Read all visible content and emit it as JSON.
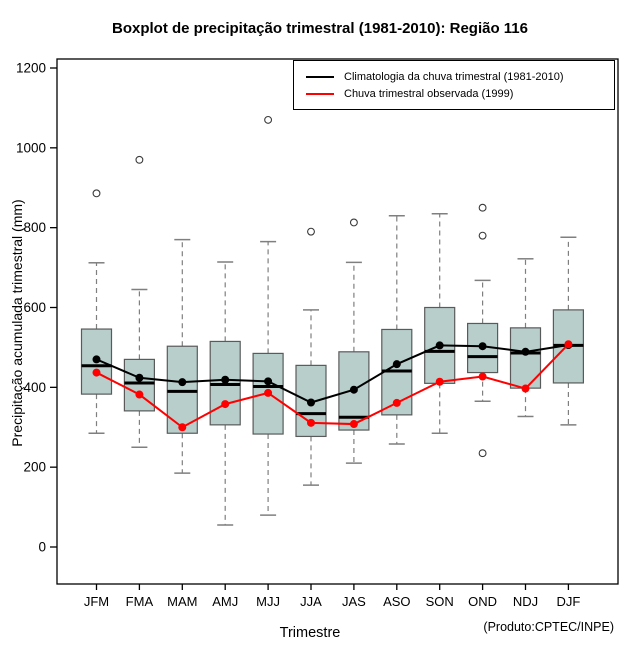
{
  "title": "Boxplot de precipitação trimestral (1981-2010): Região 116",
  "source_note": "(Produto:CPTEC/INPE)",
  "chart_data": {
    "type": "boxplot",
    "title": "Boxplot de precipitação trimestral (1981-2010): Região 116",
    "xlabel": "Trimestre",
    "ylabel": "Precipitação acumulada trimestral (mm)",
    "ylim": [
      0,
      1200
    ],
    "yticks": [
      0,
      200,
      400,
      600,
      800,
      1000,
      1200
    ],
    "grid": "off",
    "legend_position": "top-right-inside",
    "categories": [
      "JFM",
      "FMA",
      "MAM",
      "AMJ",
      "MJJ",
      "JJA",
      "JAS",
      "ASO",
      "SON",
      "OND",
      "NDJ",
      "DJF"
    ],
    "boxes": [
      {
        "category": "JFM",
        "whisker_low": 285,
        "q1": 383,
        "median": 454,
        "q3": 546,
        "whisker_high": 712,
        "outliers": [
          886
        ]
      },
      {
        "category": "FMA",
        "whisker_low": 250,
        "q1": 341,
        "median": 411,
        "q3": 470,
        "whisker_high": 645,
        "outliers": [
          970
        ]
      },
      {
        "category": "MAM",
        "whisker_low": 185,
        "q1": 285,
        "median": 390,
        "q3": 503,
        "whisker_high": 770,
        "outliers": []
      },
      {
        "category": "AMJ",
        "whisker_low": 55,
        "q1": 306,
        "median": 407,
        "q3": 515,
        "whisker_high": 714,
        "outliers": []
      },
      {
        "category": "MJJ",
        "whisker_low": 80,
        "q1": 283,
        "median": 402,
        "q3": 485,
        "whisker_high": 765,
        "outliers": [
          1070
        ]
      },
      {
        "category": "JJA",
        "whisker_low": 155,
        "q1": 277,
        "median": 334,
        "q3": 455,
        "whisker_high": 594,
        "outliers": [
          790
        ]
      },
      {
        "category": "JAS",
        "whisker_low": 210,
        "q1": 293,
        "median": 325,
        "q3": 489,
        "whisker_high": 713,
        "outliers": [
          813
        ]
      },
      {
        "category": "ASO",
        "whisker_low": 258,
        "q1": 331,
        "median": 441,
        "q3": 545,
        "whisker_high": 830,
        "outliers": []
      },
      {
        "category": "SON",
        "whisker_low": 285,
        "q1": 410,
        "median": 490,
        "q3": 600,
        "whisker_high": 835,
        "outliers": []
      },
      {
        "category": "OND",
        "whisker_low": 365,
        "q1": 437,
        "median": 477,
        "q3": 560,
        "whisker_high": 668,
        "outliers": [
          850,
          780,
          235
        ]
      },
      {
        "category": "NDJ",
        "whisker_low": 327,
        "q1": 398,
        "median": 486,
        "q3": 549,
        "whisker_high": 722,
        "outliers": []
      },
      {
        "category": "DJF",
        "whisker_low": 306,
        "q1": 411,
        "median": 505,
        "q3": 594,
        "whisker_high": 776,
        "outliers": []
      }
    ],
    "series": [
      {
        "name": "Climatologia da chuva trimestral (1981-2010)",
        "color": "#000000",
        "values": [
          470,
          424,
          413,
          419,
          415,
          362,
          394,
          458,
          505,
          503,
          489,
          506
        ]
      },
      {
        "name": "Chuva trimestral observada (1999)",
        "color": "#ff0000",
        "values": [
          437,
          382,
          300,
          358,
          386,
          311,
          308,
          361,
          414,
          427,
          397,
          508
        ]
      }
    ],
    "colors": {
      "box_fill": "#b7cecb",
      "box_border": "#5a5a5a",
      "whisker": "#7f7f7f",
      "median": "#000000",
      "outlier_stroke": "#3a3a3a",
      "climatology": "#000000",
      "observed": "#ff0000",
      "plot_border": "#000000"
    }
  }
}
